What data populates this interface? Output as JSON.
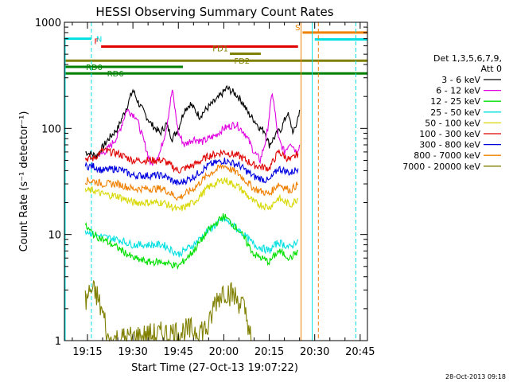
{
  "chart_data": {
    "type": "line",
    "title": "HESSI Observing Summary Count Rates",
    "xlabel": "Start Time (27-Oct-13 19:07:22)",
    "ylabel": "Count Rate (s⁻¹ detector⁻¹)",
    "x_unit": "minutes of day (UT)",
    "xlim": [
      1147.4,
      1247.4
    ],
    "x_ticks": [
      {
        "value": 1155,
        "label": "19:15"
      },
      {
        "value": 1170,
        "label": "19:30"
      },
      {
        "value": 1185,
        "label": "19:45"
      },
      {
        "value": 1200,
        "label": "20:00"
      },
      {
        "value": 1215,
        "label": "20:15"
      },
      {
        "value": 1230,
        "label": "20:30"
      },
      {
        "value": 1245,
        "label": "20:45"
      }
    ],
    "y_scale": "log",
    "ylim": [
      1,
      1000
    ],
    "y_ticks": [
      {
        "value": 1,
        "label": "1"
      },
      {
        "value": 10,
        "label": "10"
      },
      {
        "value": 100,
        "label": "100"
      },
      {
        "value": 1000,
        "label": "1000"
      }
    ],
    "legend": {
      "placement": "right",
      "header": [
        "Det 1,3,5,6,7,9,",
        "Att 0"
      ],
      "entries": [
        {
          "label": "3 - 6 keV",
          "color": "#000000"
        },
        {
          "label": "6 - 12 keV",
          "color": "#e000e0"
        },
        {
          "label": "12 - 25 keV",
          "color": "#00e000"
        },
        {
          "label": "25 - 50 keV",
          "color": "#00e0e0"
        },
        {
          "label": "50 - 100 keV",
          "color": "#d8d800"
        },
        {
          "label": "100 - 300 keV",
          "color": "#e00000"
        },
        {
          "label": "300 - 800 keV",
          "color": "#0000e0"
        },
        {
          "label": "800 - 7000 keV",
          "color": "#f08000"
        },
        {
          "label": "7000 - 20000 keV",
          "color": "#808000"
        }
      ]
    },
    "series": [
      {
        "name": "3 - 6 keV",
        "color": "#000000",
        "x": [
          1154.3,
          1158,
          1162,
          1165,
          1168,
          1170,
          1172,
          1176,
          1179,
          1181,
          1183,
          1185,
          1187,
          1189,
          1192,
          1195,
          1198,
          1201,
          1204,
          1206,
          1208,
          1210,
          1212,
          1213.5,
          1215,
          1217,
          1219,
          1221,
          1223,
          1224,
          1225
        ],
        "y": [
          60,
          55,
          80,
          100,
          160,
          230,
          170,
          110,
          90,
          110,
          80,
          100,
          150,
          170,
          130,
          160,
          190,
          240,
          210,
          180,
          140,
          120,
          100,
          95,
          70,
          85,
          100,
          140,
          90,
          110,
          150
        ]
      },
      {
        "name": "6 - 12 keV",
        "color": "#e000e0",
        "x": [
          1159,
          1162,
          1165,
          1168,
          1171,
          1174,
          1176,
          1179,
          1181,
          1183,
          1185,
          1187,
          1190,
          1193,
          1197,
          1200,
          1204,
          1207,
          1210,
          1212,
          1214,
          1216,
          1218,
          1220,
          1222,
          1224,
          1225
        ],
        "y": [
          55,
          65,
          85,
          150,
          130,
          70,
          45,
          60,
          100,
          230,
          90,
          70,
          80,
          75,
          85,
          100,
          110,
          90,
          60,
          50,
          80,
          220,
          80,
          60,
          75,
          60,
          70
        ]
      },
      {
        "name": "100 - 300 keV",
        "color": "#e00000",
        "x": [
          1154.3,
          1157,
          1160,
          1165,
          1170,
          1175,
          1180,
          1185,
          1190,
          1195,
          1200,
          1205,
          1210,
          1215,
          1218,
          1222,
          1224.5
        ],
        "y": [
          52,
          52,
          62,
          58,
          50,
          50,
          50,
          40,
          45,
          55,
          60,
          55,
          45,
          42,
          60,
          50,
          58
        ]
      },
      {
        "name": "300 - 800 keV",
        "color": "#0000e0",
        "x": [
          1154.3,
          1157,
          1160,
          1165,
          1170,
          1175,
          1180,
          1185,
          1190,
          1195,
          1200,
          1205,
          1210,
          1215,
          1218,
          1222,
          1224.5
        ],
        "y": [
          44,
          44,
          40,
          42,
          36,
          36,
          36,
          30,
          35,
          45,
          50,
          45,
          35,
          32,
          42,
          38,
          42
        ]
      },
      {
        "name": "800 - 7000 keV",
        "color": "#f08000",
        "x": [
          1154.3,
          1157,
          1160,
          1165,
          1170,
          1175,
          1180,
          1185,
          1190,
          1195,
          1200,
          1205,
          1210,
          1215,
          1218,
          1222,
          1224.5
        ],
        "y": [
          32,
          32,
          30,
          30,
          27,
          27,
          27,
          22,
          27,
          37,
          45,
          37,
          27,
          24,
          30,
          26,
          30
        ]
      },
      {
        "name": "50 - 100 keV",
        "color": "#d8d800",
        "x": [
          1154.3,
          1157,
          1160,
          1165,
          1170,
          1175,
          1180,
          1185,
          1190,
          1195,
          1200,
          1205,
          1210,
          1215,
          1218,
          1222,
          1224.5
        ],
        "y": [
          26,
          26,
          24,
          23,
          20,
          20,
          20,
          17,
          20,
          28,
          33,
          28,
          20,
          18,
          22,
          19,
          22
        ]
      },
      {
        "name": "25 - 50 keV",
        "color": "#00e0e0",
        "x": [
          1154.3,
          1157,
          1160,
          1165,
          1170,
          1175,
          1180,
          1185,
          1190,
          1195,
          1200,
          1205,
          1210,
          1215,
          1218,
          1222,
          1224.5
        ],
        "y": [
          11,
          10,
          9.5,
          9,
          8,
          8,
          8,
          6.5,
          8,
          11,
          14,
          11,
          8,
          7,
          8.5,
          7.5,
          9
        ]
      },
      {
        "name": "12 - 25 keV",
        "color": "#00e000",
        "x": [
          1154.3,
          1157,
          1160,
          1165,
          1170,
          1175,
          1180,
          1185,
          1190,
          1195,
          1200,
          1205,
          1210,
          1215,
          1218,
          1222,
          1224.5
        ],
        "y": [
          12,
          10,
          9,
          7.5,
          6,
          5.5,
          5.5,
          5,
          7,
          11,
          15,
          11,
          6.5,
          5.5,
          7,
          6,
          7
        ]
      },
      {
        "name": "7000 - 20000 keV",
        "color": "#808000",
        "x": [
          1154.3,
          1156,
          1158,
          1160,
          1161,
          1161.5,
          1163,
          1195,
          1197,
          1200,
          1203,
          1206,
          1208,
          1209
        ],
        "y": [
          2.3,
          3,
          2.7,
          1.8,
          1.4,
          1,
          1,
          1.3,
          2.3,
          3,
          2.7,
          2.2,
          1.5,
          1
        ]
      }
    ],
    "annotations": [
      {
        "type": "bar",
        "label": "N",
        "color": "#00e0e0",
        "x_start": 1147.4,
        "x_end": 1156.3,
        "y": 700
      },
      {
        "type": "bar",
        "label": "F",
        "color": "#e00000",
        "x_start": 1159.5,
        "x_end": 1224.5,
        "y": 590
      },
      {
        "type": "bar",
        "label": "FD1",
        "color": "#808000",
        "x_start": 1202,
        "x_end": 1212.2,
        "y": 505
      },
      {
        "type": "bar",
        "label": "FD2",
        "color": "#808000",
        "x_start": 1147.4,
        "x_end": 1247.4,
        "y": 435
      },
      {
        "type": "bar",
        "label": "RD0",
        "color": "#008000",
        "x_start": 1147.4,
        "x_end": 1186.5,
        "y": 380
      },
      {
        "type": "bar",
        "label": "RD6",
        "color": "#008000",
        "x_start": 1147.4,
        "x_end": 1247.4,
        "y": 330
      },
      {
        "type": "bar",
        "label": "S",
        "color": "#f08000",
        "x_start": 1226,
        "x_end": 1247.4,
        "y": 800
      },
      {
        "type": "bar",
        "label": "",
        "color": "#00e0e0",
        "x_start": 1230,
        "x_end": 1247.4,
        "y": 690
      },
      {
        "type": "vline",
        "label": "",
        "color": "#00e0e0",
        "style": "dashed",
        "x": 1156.3
      },
      {
        "type": "vline",
        "label": "",
        "color": "#f08000",
        "style": "solid",
        "x": 1225.5
      },
      {
        "type": "vline",
        "label": "",
        "color": "#00e0e0",
        "style": "solid",
        "x": 1229.2
      },
      {
        "type": "vline",
        "label": "",
        "color": "#f08000",
        "style": "dashed",
        "x": 1231.2
      },
      {
        "type": "vline",
        "label": "",
        "color": "#00e0e0",
        "style": "dashed",
        "x": 1243.6
      }
    ],
    "grid": false
  },
  "footer": {
    "timestamp": "28-Oct-2013 09:18"
  }
}
